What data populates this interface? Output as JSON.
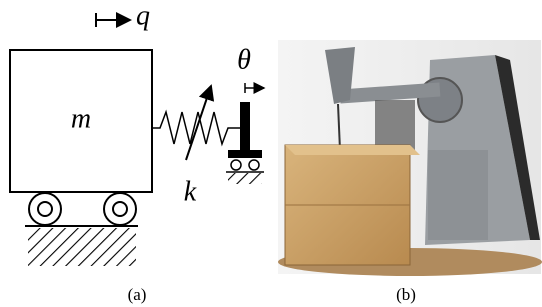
{
  "diagram": {
    "displacement": "q",
    "mass": "m",
    "stiffness": "k",
    "angle": "θ"
  },
  "captions": [
    "(a)",
    "(b)"
  ]
}
